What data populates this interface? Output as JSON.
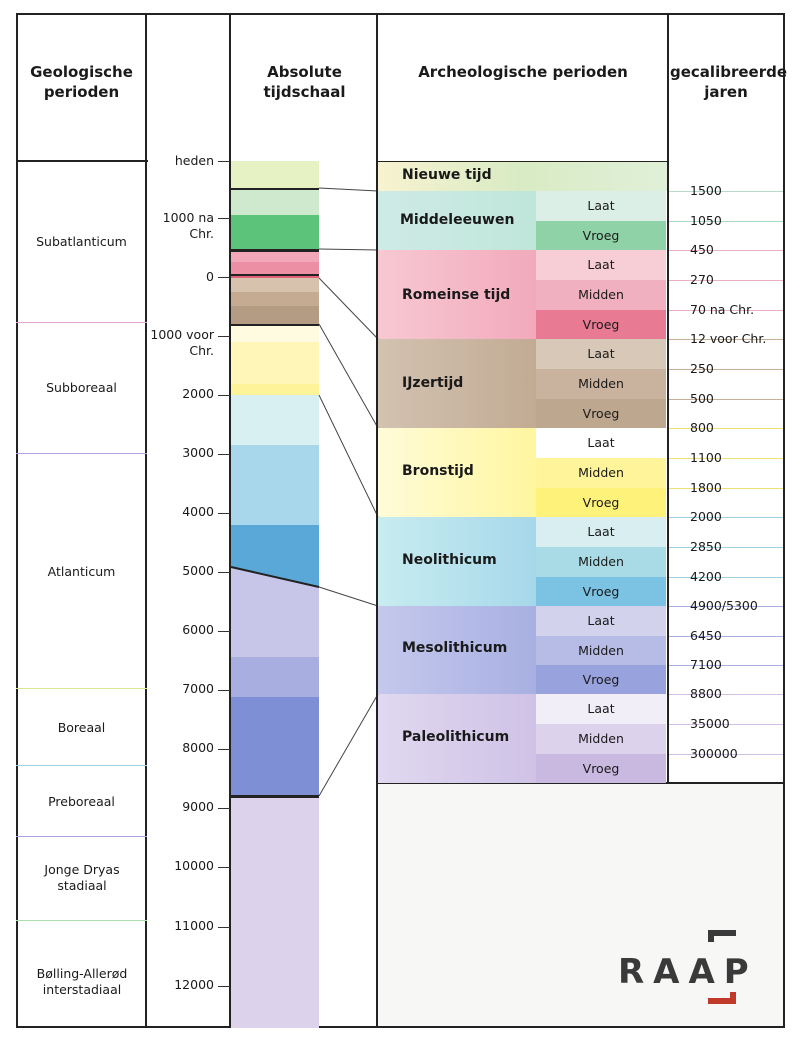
{
  "headers": {
    "geological": "Geologische perioden",
    "absolute": "Absolute tijdschaal",
    "archaeological": "Archeologische perioden",
    "calibrated": "gecalibreerde jaren"
  },
  "geological_periods": [
    {
      "name": "Subatlanticum"
    },
    {
      "name": "Subboreaal"
    },
    {
      "name": "Atlanticum"
    },
    {
      "name": "Boreaal"
    },
    {
      "name": "Preboreaal"
    },
    {
      "name": "Jonge Dryas stadiaal"
    },
    {
      "name": "Bølling-Allerød interstadiaal"
    }
  ],
  "scale_ticks": [
    "heden",
    "1000 na Chr.",
    "0",
    "1000 voor Chr.",
    "2000",
    "3000",
    "4000",
    "5000",
    "6000",
    "7000",
    "8000",
    "9000",
    "10000",
    "11000",
    "12000"
  ],
  "archaeological_periods": [
    {
      "name": "Nieuwe tijd",
      "subs": []
    },
    {
      "name": "Middeleeuwen",
      "subs": [
        "Laat",
        "Vroeg"
      ]
    },
    {
      "name": "Romeinse tijd",
      "subs": [
        "Laat",
        "Midden",
        "Vroeg"
      ]
    },
    {
      "name": "IJzertijd",
      "subs": [
        "Laat",
        "Midden",
        "Vroeg"
      ]
    },
    {
      "name": "Bronstijd",
      "subs": [
        "Laat",
        "Midden",
        "Vroeg"
      ]
    },
    {
      "name": "Neolithicum",
      "subs": [
        "Laat",
        "Midden",
        "Vroeg"
      ]
    },
    {
      "name": "Mesolithicum",
      "subs": [
        "Laat",
        "Midden",
        "Vroeg"
      ]
    },
    {
      "name": "Paleolithicum",
      "subs": [
        "Laat",
        "Midden",
        "Vroeg"
      ]
    }
  ],
  "calibrated_years": [
    "1500",
    "1050",
    "450",
    "270",
    "70 na Chr.",
    "12 voor Chr.",
    "250",
    "500",
    "800",
    "1100",
    "1800",
    "2000",
    "2850",
    "4200",
    "4900/5300",
    "6450",
    "7100",
    "8800",
    "35000",
    "300000"
  ],
  "logo": "RAAP",
  "colors": {
    "nieuwe": "#e6f2c4",
    "middeleeuwen": "#bfe6da",
    "romeins": "#f4b6c2",
    "ijzer": "#c9b8a4",
    "brons": "#fff6a8",
    "neo": "#b9e1ec",
    "meso": "#b7bde6",
    "paleo": "#d8c9ea",
    "logo_accent": "#c0392b"
  }
}
